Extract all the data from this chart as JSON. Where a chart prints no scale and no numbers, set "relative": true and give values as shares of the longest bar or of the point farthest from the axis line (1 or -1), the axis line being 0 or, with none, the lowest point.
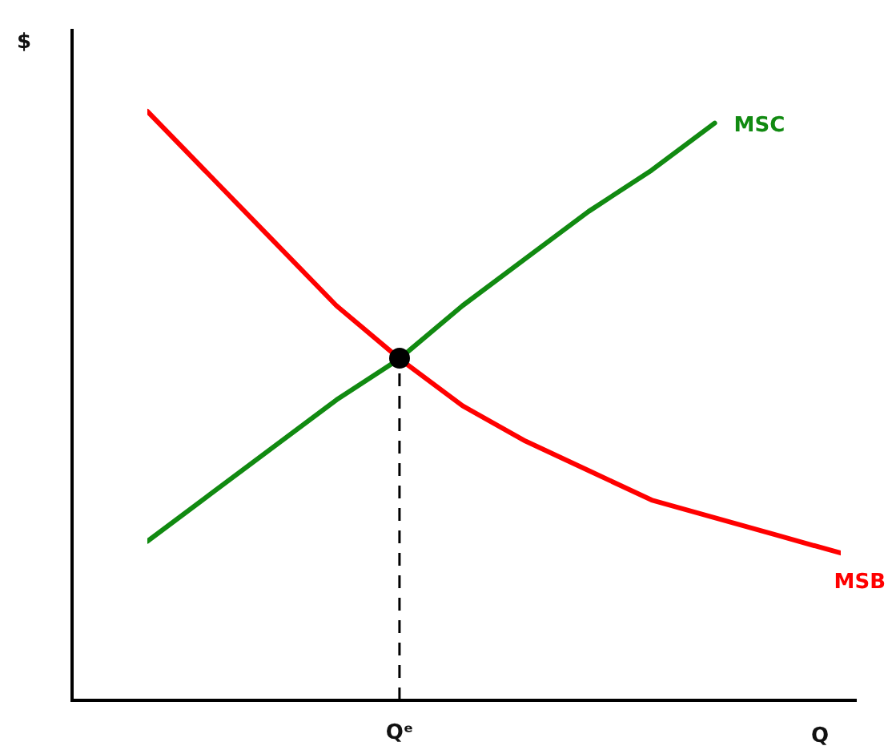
{
  "chart_data": {
    "type": "line",
    "relative": true,
    "ylabel": "$",
    "xlabel": "Q",
    "categories": [
      null,
      null,
      null,
      null,
      null,
      null,
      null,
      null,
      null,
      null,
      null,
      null
    ],
    "series": [
      {
        "name": "MSC",
        "color": "#118a11",
        "values": [
          0.27,
          0.35,
          0.43,
          0.51,
          0.58,
          0.67,
          0.75,
          0.83,
          0.9,
          0.98,
          null,
          null
        ]
      },
      {
        "name": "MSB",
        "color": "#ff0000",
        "values": [
          1,
          0.89,
          0.78,
          0.67,
          0.58,
          0.5,
          0.44,
          0.39,
          0.34,
          0.31,
          0.28,
          0.25
        ]
      }
    ],
    "ref_lines": [
      {
        "axis": "x",
        "label": "Qᵉ",
        "color": "#000000",
        "line_style": "dashed"
      }
    ],
    "grid": false,
    "legend": false,
    "marker": "none",
    "line_style": "solid"
  }
}
